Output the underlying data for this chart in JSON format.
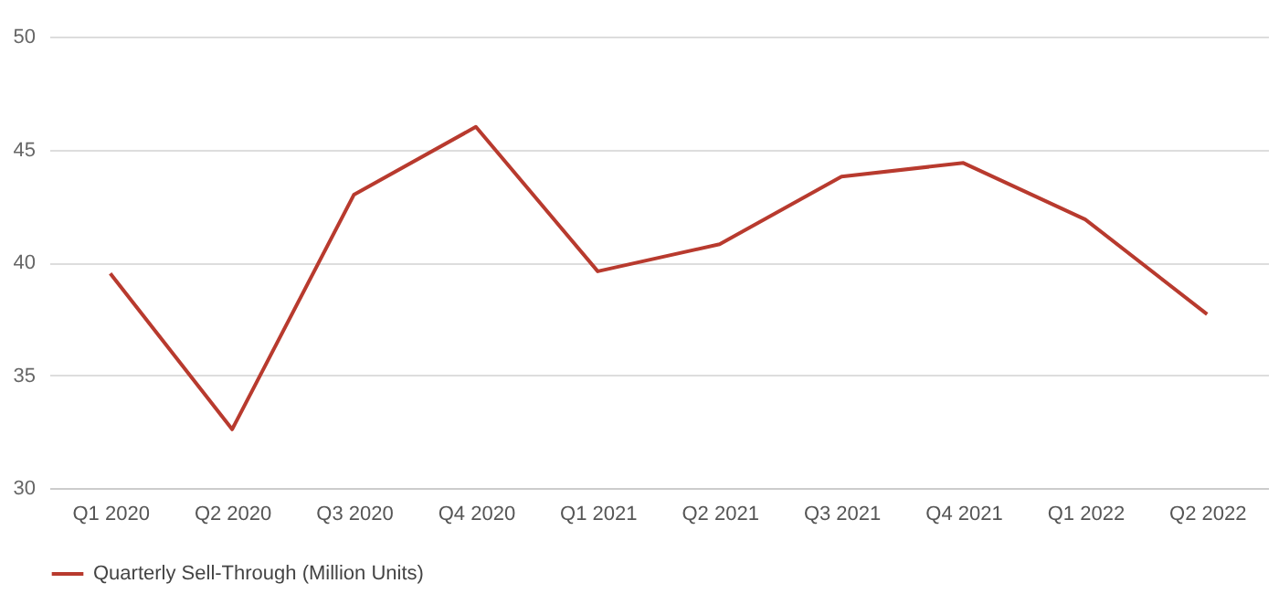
{
  "chart_data": {
    "type": "line",
    "categories": [
      "Q1 2020",
      "Q2 2020",
      "Q3 2020",
      "Q4 2020",
      "Q1 2021",
      "Q2 2021",
      "Q3 2021",
      "Q4 2021",
      "Q1 2022",
      "Q2 2022"
    ],
    "series": [
      {
        "name": "Quarterly Sell-Through (Million Units)",
        "color": "#b83a2e",
        "values": [
          39.5,
          32.6,
          43.0,
          46.0,
          39.6,
          40.8,
          43.8,
          44.4,
          41.9,
          37.7
        ]
      }
    ],
    "ylim": [
      30,
      50
    ],
    "yticks": [
      30,
      35,
      40,
      45,
      50
    ],
    "grid": "y",
    "legend": "bottom",
    "marker": "none",
    "line_style": "solid"
  }
}
